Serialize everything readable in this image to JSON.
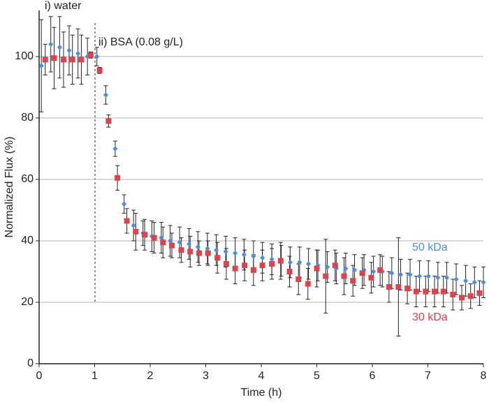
{
  "chart_data": {
    "type": "scatter",
    "xlabel": "Time (h)",
    "ylabel": "Normalized Flux (%)",
    "annotations": [
      "i) water",
      "ii) BSA (0.08 g/L)"
    ],
    "xlim": [
      0,
      8
    ],
    "xticks": [
      0,
      1,
      2,
      3,
      4,
      5,
      6,
      7,
      8
    ],
    "ylim": [
      0,
      115
    ],
    "yticks": [
      0,
      20,
      40,
      60,
      80,
      100
    ],
    "grid": true,
    "series": [
      {
        "name": "50 kDa",
        "color": "#4f8fd6",
        "marker": "diamond",
        "x": [
          0.04,
          0.21,
          0.37,
          0.54,
          0.7,
          0.87,
          1.04,
          1.2,
          1.37,
          1.53,
          1.7,
          1.87,
          2.03,
          2.2,
          2.36,
          2.53,
          2.7,
          2.86,
          3.03,
          3.19,
          3.36,
          3.53,
          3.69,
          3.86,
          4.02,
          4.19,
          4.36,
          4.52,
          4.69,
          4.85,
          5.02,
          5.19,
          5.35,
          5.52,
          5.68,
          5.85,
          6.02,
          6.18,
          6.35,
          6.51,
          6.68,
          6.85,
          7.01,
          7.18,
          7.34,
          7.51,
          7.68,
          7.84,
          8.0
        ],
        "values": [
          97,
          104,
          103,
          102,
          101,
          100,
          100,
          87.5,
          70,
          52,
          45,
          42.5,
          41.5,
          41,
          40,
          39.5,
          39,
          38,
          37.5,
          37,
          36.5,
          36,
          35.5,
          35,
          34.5,
          34,
          33.5,
          33,
          33,
          32.5,
          32,
          31.5,
          31,
          31,
          30.5,
          30.5,
          30,
          30,
          29.5,
          29,
          29,
          28.5,
          28.5,
          28,
          28,
          27.5,
          27,
          26.5,
          26.5
        ],
        "errors": [
          15,
          9,
          10,
          8,
          8,
          6,
          3,
          3,
          2.5,
          3,
          5,
          4,
          5,
          5,
          5,
          5,
          5,
          5,
          5,
          5,
          5,
          5,
          5,
          5,
          5,
          5,
          5,
          5,
          5,
          5,
          5,
          5,
          5,
          5,
          5,
          5,
          5,
          5,
          5,
          5,
          5,
          5,
          5,
          5,
          5,
          5,
          5,
          5,
          5
        ]
      },
      {
        "name": "30 kDa",
        "color": "#d9444e",
        "marker": "square",
        "x": [
          0.11,
          0.27,
          0.44,
          0.6,
          0.76,
          0.93,
          1.09,
          1.25,
          1.41,
          1.58,
          1.74,
          1.9,
          2.07,
          2.23,
          2.39,
          2.56,
          2.72,
          2.88,
          3.04,
          3.21,
          3.37,
          3.53,
          3.7,
          3.86,
          4.02,
          4.19,
          4.35,
          4.51,
          4.67,
          4.84,
          5.0,
          5.16,
          5.33,
          5.49,
          5.65,
          5.82,
          5.98,
          6.14,
          6.3,
          6.47,
          6.63,
          6.79,
          6.96,
          7.12,
          7.28,
          7.45,
          7.61,
          7.77,
          7.93
        ],
        "values": [
          99,
          99.5,
          99,
          99,
          99,
          100.5,
          95.5,
          79,
          60.5,
          46.5,
          43,
          42,
          41,
          39.5,
          38.5,
          37,
          36.5,
          36,
          36,
          34.5,
          32.5,
          31,
          32,
          30.5,
          32,
          32.5,
          33.5,
          30,
          27.5,
          26,
          31,
          28.5,
          32,
          28.5,
          27,
          29.5,
          28,
          30.5,
          25,
          25,
          24.5,
          23.5,
          23.5,
          23.5,
          23.5,
          22.5,
          21.5,
          22,
          23
        ],
        "errors": [
          5,
          10,
          9,
          8,
          8,
          1,
          1,
          2,
          4,
          4,
          6,
          5,
          5,
          5,
          4,
          4,
          5,
          4,
          4,
          5,
          5,
          5,
          5,
          5,
          5,
          5,
          6,
          5,
          5,
          5,
          6,
          12,
          5,
          6,
          5,
          5,
          5,
          5,
          5,
          16,
          5,
          5,
          5,
          5,
          5,
          5,
          4,
          4,
          4
        ]
      }
    ]
  }
}
